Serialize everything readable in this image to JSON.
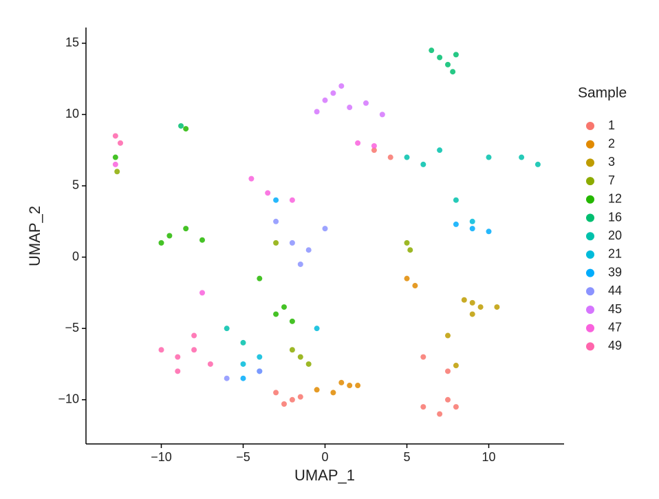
{
  "chart_data": {
    "type": "scatter",
    "x_label": "UMAP_1",
    "y_label": "UMAP_2",
    "legend_title": "Sample",
    "xlim": [
      -14.6,
      14.6
    ],
    "ylim": [
      -13.1,
      16.1
    ],
    "xticks": [
      {
        "value": -10,
        "label": "−10"
      },
      {
        "value": -5,
        "label": "−5"
      },
      0,
      5,
      10
    ],
    "yticks": [
      {
        "value": -10,
        "label": "−10"
      },
      {
        "value": -5,
        "label": "−5"
      },
      0,
      5,
      10,
      15
    ],
    "grid": false,
    "legend": "right",
    "series": [
      {
        "name": "1",
        "color": "#F8766D",
        "x": [
          7.5,
          7,
          8,
          6,
          7.5,
          -2,
          -2.5,
          -1.5,
          -3,
          4,
          3,
          6
        ],
        "y": [
          -10,
          -11,
          -10.5,
          -10.5,
          -8,
          -10,
          -10.3,
          -9.8,
          -9.5,
          7,
          7.5,
          -7
        ]
      },
      {
        "name": "2",
        "color": "#E18A00",
        "x": [
          1.5,
          0.5,
          2,
          1,
          5,
          5.5,
          -0.5
        ],
        "y": [
          -9,
          -9.5,
          -9,
          -8.8,
          -1.5,
          -2,
          -9.3
        ]
      },
      {
        "name": "3",
        "color": "#BE9C00",
        "x": [
          9,
          9.5,
          10.5,
          8.5,
          9,
          8,
          7.5
        ],
        "y": [
          -3.2,
          -3.5,
          -3.5,
          -3,
          -4,
          -7.6,
          -5.5
        ]
      },
      {
        "name": "7",
        "color": "#8CAB00",
        "x": [
          5,
          5.2,
          -1.5,
          -1,
          -2,
          -12.7,
          -3
        ],
        "y": [
          1,
          0.5,
          -7,
          -7.5,
          -6.5,
          6,
          1
        ]
      },
      {
        "name": "12",
        "color": "#24B700",
        "x": [
          -9.5,
          -10,
          -8.5,
          -7.5,
          -3,
          -2,
          -2.5,
          -4,
          -8.5,
          -12.8
        ],
        "y": [
          1.5,
          1,
          2,
          1.2,
          -4,
          -4.5,
          -3.5,
          -1.5,
          9,
          7
        ]
      },
      {
        "name": "16",
        "color": "#00BE70",
        "x": [
          7,
          7.5,
          8,
          7.8,
          6.5,
          -8.8
        ],
        "y": [
          14,
          13.5,
          14.2,
          13,
          14.5,
          9.2
        ]
      },
      {
        "name": "20",
        "color": "#00C1AB",
        "x": [
          5,
          6,
          7,
          10,
          12,
          13,
          8,
          -5,
          -6
        ],
        "y": [
          7,
          6.5,
          7.5,
          7,
          7,
          6.5,
          4,
          -6,
          -5
        ]
      },
      {
        "name": "21",
        "color": "#00BBDA",
        "x": [
          -5,
          -4,
          9,
          -0.5
        ],
        "y": [
          -7.5,
          -7,
          2.5,
          -5
        ]
      },
      {
        "name": "39",
        "color": "#00ACFC",
        "x": [
          9,
          10,
          8,
          -3,
          -4,
          -5
        ],
        "y": [
          2,
          1.8,
          2.3,
          4,
          -8,
          -8.5
        ]
      },
      {
        "name": "44",
        "color": "#8B93FF",
        "x": [
          -2,
          -1,
          0,
          -3,
          -1.5,
          -4,
          -6
        ],
        "y": [
          1,
          0.5,
          2,
          2.5,
          -0.5,
          -8,
          -8.5
        ]
      },
      {
        "name": "45",
        "color": "#D575FE",
        "x": [
          0.5,
          1,
          0,
          -0.5,
          1.5,
          2.5,
          3.5
        ],
        "y": [
          11.5,
          12,
          11,
          10.2,
          10.5,
          10.8,
          10
        ]
      },
      {
        "name": "47",
        "color": "#F962DD",
        "x": [
          -4.5,
          -3.5,
          -2,
          2,
          3,
          -12.8,
          -7.5
        ],
        "y": [
          5.5,
          4.5,
          4,
          8,
          7.8,
          6.5,
          -2.5
        ]
      },
      {
        "name": "49",
        "color": "#FF65AC",
        "x": [
          -12.8,
          -12.5,
          -10,
          -9,
          -8,
          -9,
          -7,
          -8
        ],
        "y": [
          8.5,
          8,
          -6.5,
          -7,
          -6.5,
          -8,
          -7.5,
          -5.5
        ]
      }
    ]
  }
}
